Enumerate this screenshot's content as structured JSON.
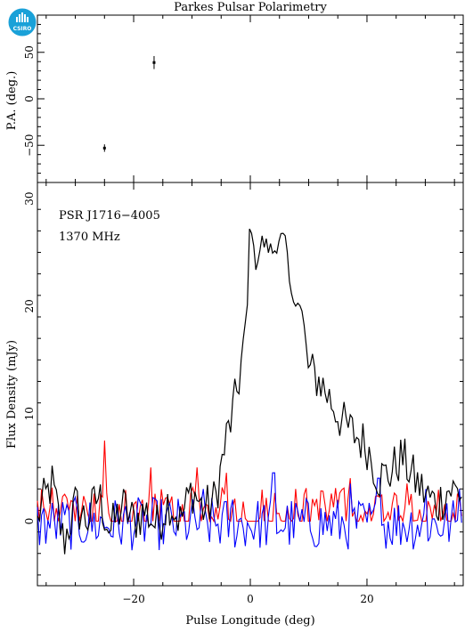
{
  "title": "Parkes Pulsar Polarimetry",
  "logo_text": "CSIRO",
  "colors": {
    "total": "#000000",
    "linear": "#ff0000",
    "circular": "#0000ff",
    "logo": "#1aa1d8"
  },
  "chart_data": [
    {
      "type": "scatter",
      "name": "position-angle",
      "ylabel": "P.A. (deg.)",
      "xlim": [
        -36.5,
        36.5
      ],
      "ylim": [
        -90,
        90
      ],
      "yticks": [
        -50,
        0,
        50
      ],
      "points": [
        {
          "x": -25,
          "y": -53,
          "err": 4
        },
        {
          "x": -16.5,
          "y": 39,
          "err": 7
        }
      ]
    },
    {
      "type": "line",
      "name": "flux-profile",
      "xlabel": "Pulse Longitude (deg)",
      "ylabel": "Flux Density (mJy)",
      "xlim": [
        -36.5,
        36.5
      ],
      "ylim": [
        -6,
        31.5
      ],
      "xticks": [
        -20,
        0,
        20
      ],
      "yticks": [
        0,
        10,
        20,
        30
      ],
      "annotations": [
        "PSR J1716−4005",
        "1370 MHz"
      ],
      "total_intensity_key": [
        [
          -36.5,
          0.5
        ],
        [
          -34,
          3.5
        ],
        [
          -32,
          -2
        ],
        [
          -30,
          1.5
        ],
        [
          -28,
          0
        ],
        [
          -26,
          2.5
        ],
        [
          -24,
          -1
        ],
        [
          -22,
          1.5
        ],
        [
          -20,
          0
        ],
        [
          -18,
          1
        ],
        [
          -16,
          -0.5
        ],
        [
          -14,
          2
        ],
        [
          -12,
          0
        ],
        [
          -10,
          3
        ],
        [
          -8,
          1
        ],
        [
          -6,
          2
        ],
        [
          -5,
          5
        ],
        [
          -4,
          8
        ],
        [
          -3,
          10
        ],
        [
          -2,
          13
        ],
        [
          -1,
          17
        ],
        [
          -0.5,
          20
        ],
        [
          0,
          29.5
        ],
        [
          0.5,
          25
        ],
        [
          1,
          24
        ],
        [
          2,
          26
        ],
        [
          3,
          25.5
        ],
        [
          4,
          25
        ],
        [
          5,
          26.5
        ],
        [
          6,
          26
        ],
        [
          7,
          20.5
        ],
        [
          8,
          21
        ],
        [
          9,
          19
        ],
        [
          10,
          14
        ],
        [
          12,
          13
        ],
        [
          14,
          11
        ],
        [
          16,
          9
        ],
        [
          18,
          8
        ],
        [
          20,
          7
        ],
        [
          22,
          4
        ],
        [
          24,
          4.5
        ],
        [
          26,
          6
        ],
        [
          28,
          4
        ],
        [
          30,
          2.5
        ],
        [
          32,
          1.5
        ],
        [
          34,
          3
        ],
        [
          36.5,
          2.5
        ]
      ],
      "linear_peaks": [
        [
          -25,
          7.5
        ],
        [
          -17,
          5
        ],
        [
          -9,
          5
        ],
        [
          -4,
          4.5
        ],
        [
          17,
          4
        ],
        [
          27,
          3.5
        ]
      ],
      "circular_peaks": [
        [
          -8,
          3
        ],
        [
          -3,
          2
        ],
        [
          4,
          4.5
        ],
        [
          17,
          3.5
        ],
        [
          22,
          4
        ],
        [
          30,
          3
        ],
        [
          36,
          3
        ]
      ]
    }
  ]
}
